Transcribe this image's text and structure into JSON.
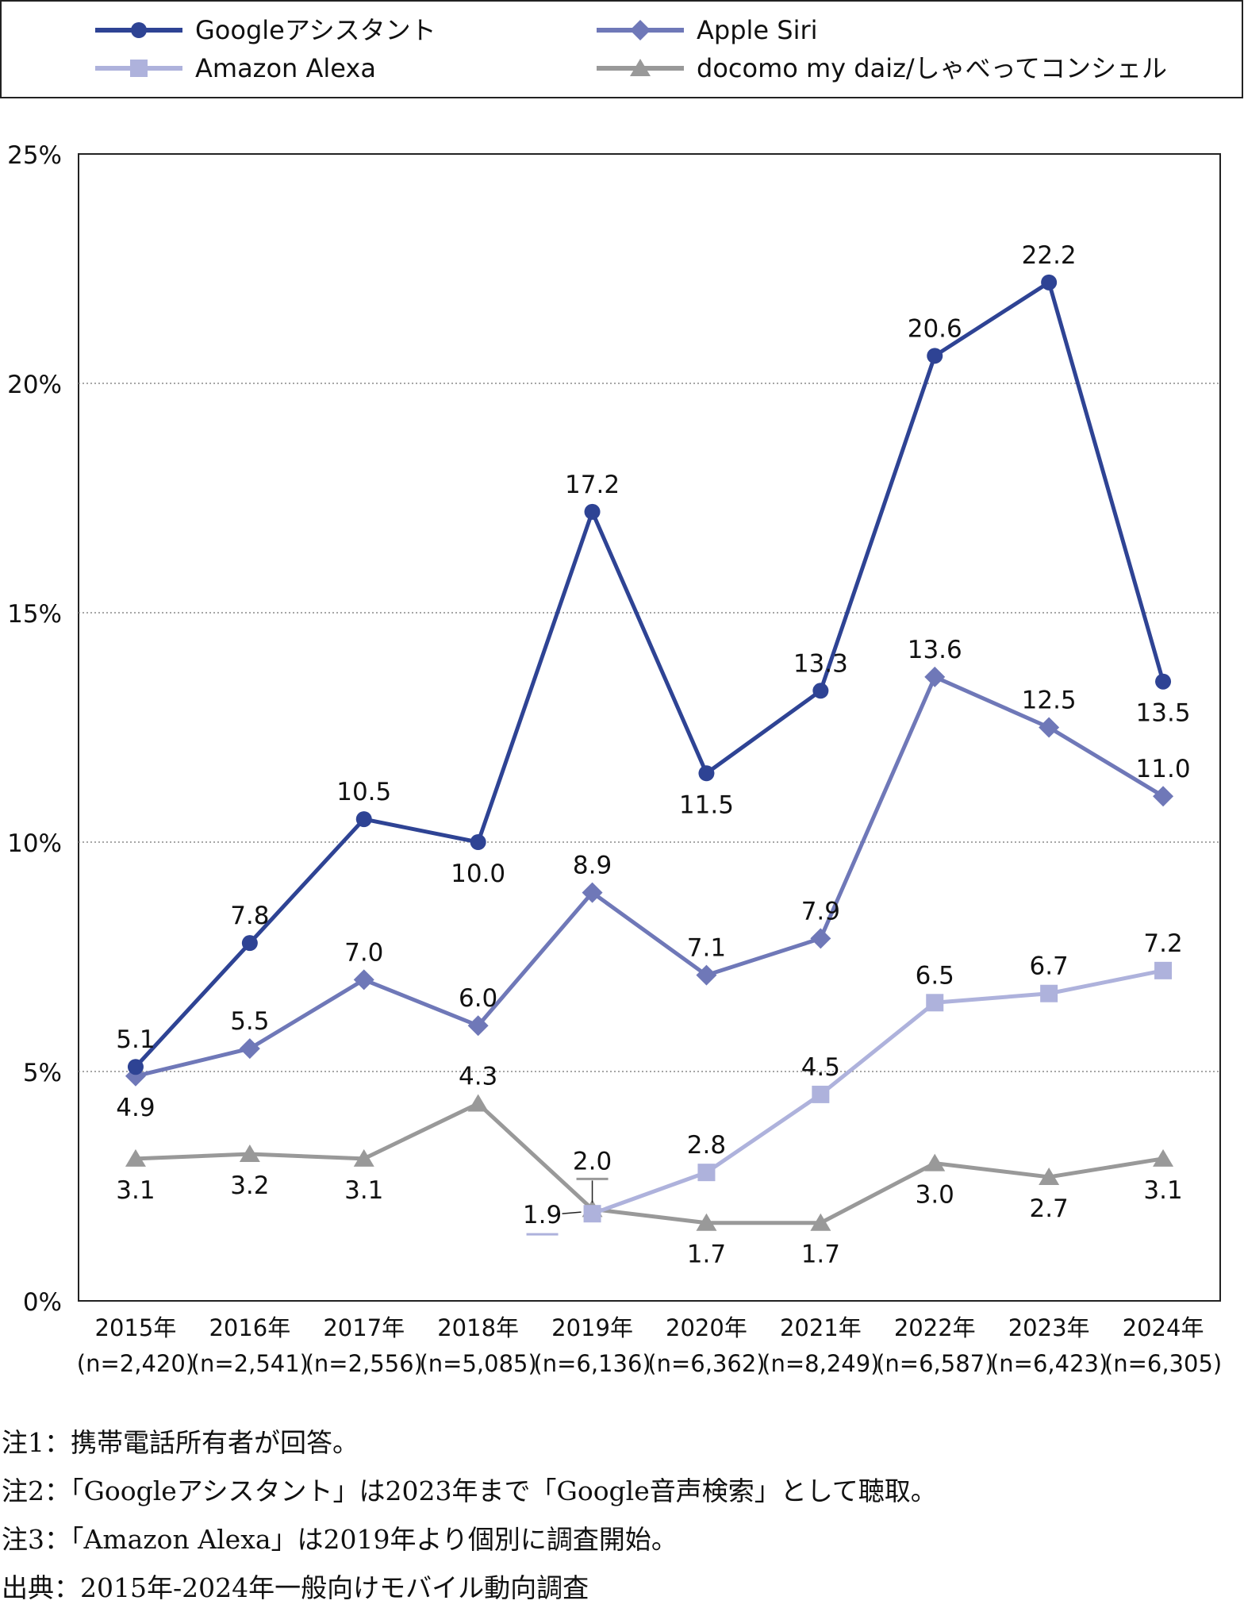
{
  "chart_data": {
    "type": "line",
    "ylim": [
      0,
      25
    ],
    "yticks": [
      "0%",
      "5%",
      "10%",
      "15%",
      "20%",
      "25%"
    ],
    "grid": "horizontal dotted",
    "legend_position": "top",
    "categories": [
      "2015年",
      "2016年",
      "2017年",
      "2018年",
      "2019年",
      "2020年",
      "2021年",
      "2022年",
      "2023年",
      "2024年"
    ],
    "sample_sizes": [
      "(n=2,420)",
      "(n=2,541)",
      "(n=2,556)",
      "(n=5,085)",
      "(n=6,136)",
      "(n=6,362)",
      "(n=8,249)",
      "(n=6,587)",
      "(n=6,423)",
      "(n=6,305)"
    ],
    "series": [
      {
        "name": "Googleアシスタント",
        "color": "#2e4394",
        "marker": "circle",
        "values": [
          5.1,
          7.8,
          10.5,
          10.0,
          17.2,
          11.5,
          13.3,
          20.6,
          22.2,
          13.5
        ],
        "labels": [
          "5.1",
          "7.8",
          "10.5",
          "10.0",
          "17.2",
          "11.5",
          "13.3",
          "20.6",
          "22.2",
          "13.5"
        ]
      },
      {
        "name": "Apple Siri",
        "color": "#6f78b8",
        "marker": "diamond",
        "values": [
          4.9,
          5.5,
          7.0,
          6.0,
          8.9,
          7.1,
          7.9,
          13.6,
          12.5,
          11.0
        ],
        "labels": [
          "4.9",
          "5.5",
          "7.0",
          "6.0",
          "8.9",
          "7.1",
          "7.9",
          "13.6",
          "12.5",
          "11.0"
        ]
      },
      {
        "name": "Amazon Alexa",
        "color": "#aeb2dc",
        "marker": "square",
        "values": [
          null,
          null,
          null,
          null,
          1.9,
          2.8,
          4.5,
          6.5,
          6.7,
          7.2
        ],
        "labels": [
          null,
          null,
          null,
          null,
          "1.9",
          "2.8",
          "4.5",
          "6.5",
          "6.7",
          "7.2"
        ]
      },
      {
        "name": "docomo my daiz/しゃべってコンシェル",
        "color": "#999999",
        "marker": "triangle",
        "values": [
          3.1,
          3.2,
          3.1,
          4.3,
          2.0,
          1.7,
          1.7,
          3.0,
          2.7,
          3.1
        ],
        "labels": [
          "3.1",
          "3.2",
          "3.1",
          "4.3",
          "2.0",
          "1.7",
          "1.7",
          "3.0",
          "2.7",
          "3.1"
        ]
      }
    ]
  },
  "notes": [
    "注1：携帯電話所有者が回答。",
    "注2：「Googleアシスタント」は2023年まで「Google音声検索」として聴取。",
    "注3：「Amazon Alexa」は2019年より個別に調査開始。",
    "出典：2015年-2024年一般向けモバイル動向調査"
  ]
}
